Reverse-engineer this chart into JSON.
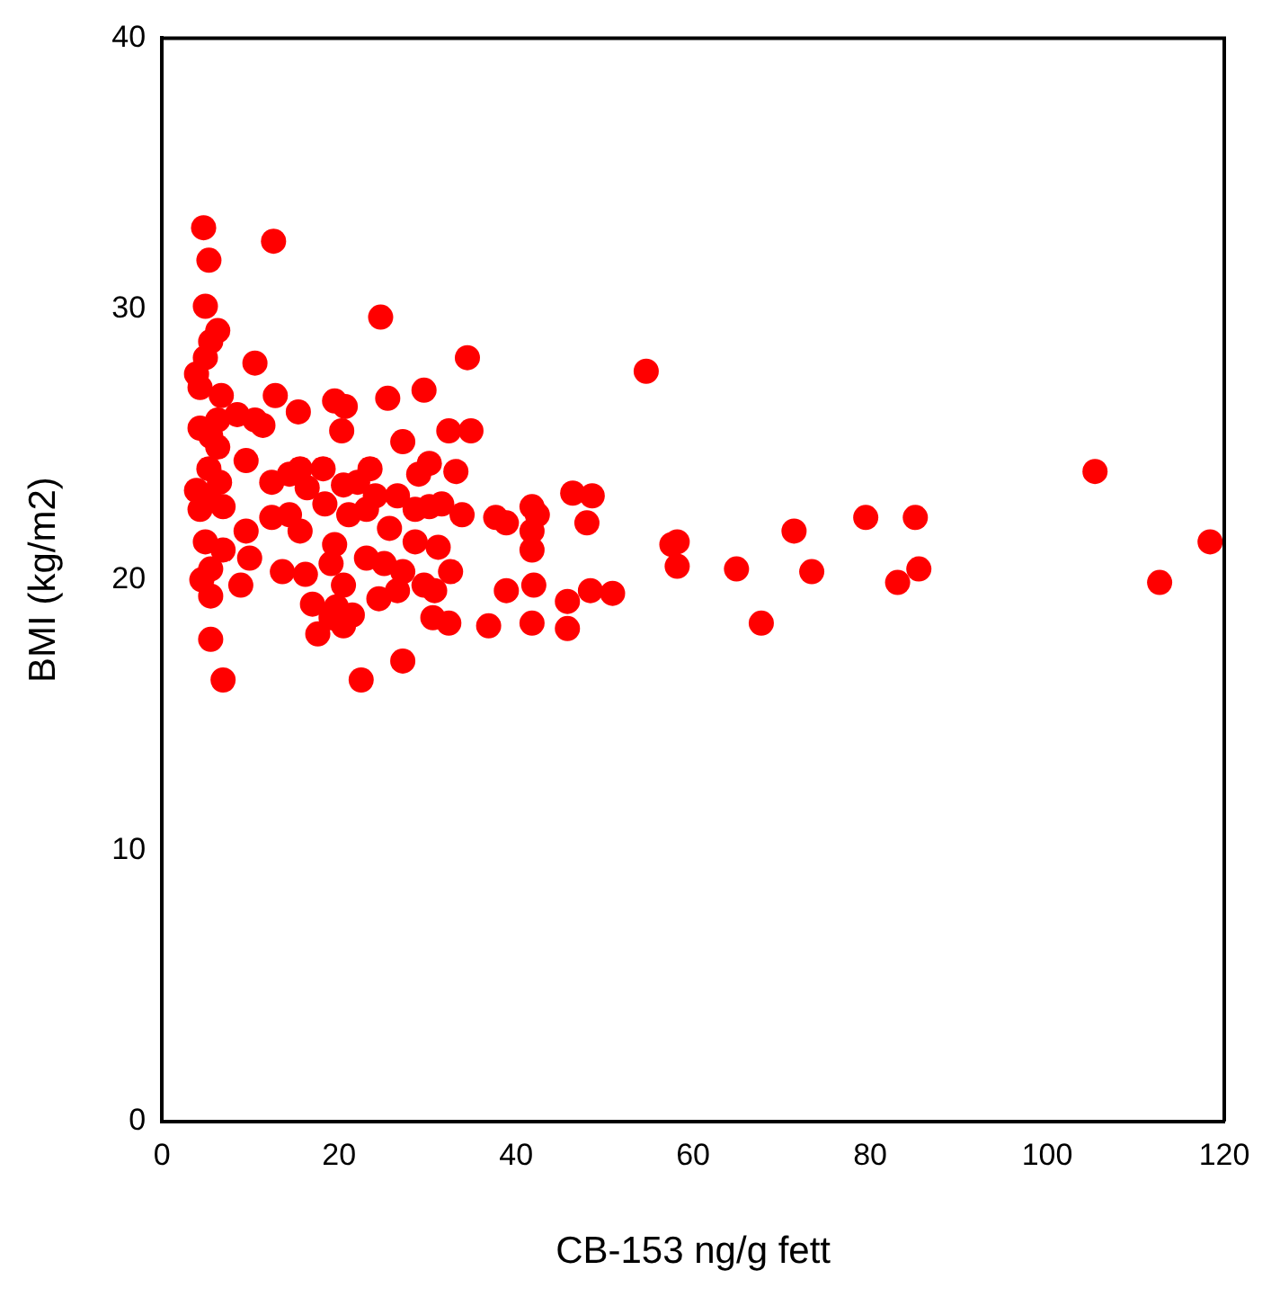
{
  "chart_data": {
    "type": "scatter",
    "xlabel": "CB-153 ng/g fett",
    "ylabel": "BMI (kg/m2)",
    "xlim": [
      0,
      120
    ],
    "xticks": [
      0,
      20,
      40,
      60,
      80,
      100,
      120
    ],
    "ylim": [
      0,
      40
    ],
    "yticks": [
      0,
      10,
      20,
      30,
      40
    ],
    "marker": "circle",
    "series": [
      {
        "color": "#ff0000",
        "x": [
          4.7,
          5.3,
          12.6,
          4.9,
          24.7,
          6.3,
          5.5,
          4.9,
          10.5,
          3.9,
          4.3,
          6.7,
          12.8,
          15.4,
          19.5,
          20.7,
          25.5,
          20.3,
          4.3,
          6.3,
          8.5,
          10.5,
          11.4,
          5.5,
          6.3,
          27.2,
          9.5,
          5.3,
          18.2,
          23.5,
          12.4,
          14.4,
          15.6,
          6.5,
          3.9,
          20.5,
          22.1,
          26.6,
          5.1,
          6.9,
          16.4,
          18.4,
          24.1,
          28.6,
          4.3,
          12.4,
          14.4,
          15.6,
          21.1,
          23.1,
          25.7,
          9.5,
          4.9,
          6.9,
          9.9,
          19.5,
          19.1,
          23.1,
          25.1,
          27.2,
          5.5,
          4.5,
          13.6,
          16.2,
          8.9,
          20.5,
          5.5,
          24.5,
          26.6,
          17.0,
          19.7,
          21.5,
          19.1,
          20.5,
          17.6,
          5.5,
          27.2,
          6.9,
          22.5,
          34.5,
          29.6,
          54.7,
          32.4,
          34.9,
          30.2,
          29.0,
          33.2,
          30.2,
          31.6,
          33.9,
          37.7,
          38.9,
          41.8,
          42.4,
          46.4,
          48.6,
          48.0,
          41.8,
          41.8,
          28.6,
          31.2,
          32.6,
          29.6,
          30.8,
          38.9,
          42.0,
          45.8,
          48.4,
          50.9,
          30.6,
          32.4,
          36.9,
          41.8,
          45.8,
          57.6,
          58.2,
          58.2,
          105.4,
          118.4,
          112.7,
          64.9,
          67.7,
          71.4,
          73.4,
          79.5,
          85.1,
          83.1,
          85.5
        ],
        "values": [
          33.0,
          31.8,
          32.5,
          30.1,
          29.7,
          29.2,
          28.8,
          28.2,
          28.0,
          27.6,
          27.1,
          26.8,
          26.8,
          26.2,
          26.6,
          26.4,
          26.7,
          25.5,
          25.6,
          25.9,
          26.1,
          25.9,
          25.7,
          25.3,
          24.9,
          25.1,
          24.4,
          24.1,
          24.1,
          24.1,
          23.6,
          23.9,
          24.1,
          23.6,
          23.3,
          23.5,
          23.6,
          23.1,
          23.1,
          22.7,
          23.4,
          22.8,
          23.1,
          22.6,
          22.6,
          22.3,
          22.4,
          21.8,
          22.4,
          22.6,
          21.9,
          21.8,
          21.4,
          21.1,
          20.8,
          21.3,
          20.6,
          20.8,
          20.6,
          20.3,
          20.4,
          20.0,
          20.3,
          20.2,
          19.8,
          19.8,
          19.4,
          19.3,
          19.6,
          19.1,
          19.0,
          18.7,
          18.6,
          18.3,
          18.0,
          17.8,
          17.0,
          16.3,
          16.3,
          28.2,
          27.0,
          27.7,
          25.5,
          25.5,
          24.3,
          23.9,
          24.0,
          22.7,
          22.8,
          22.4,
          22.3,
          22.1,
          22.7,
          22.4,
          23.2,
          23.1,
          22.1,
          21.8,
          21.1,
          21.4,
          21.2,
          20.3,
          19.8,
          19.6,
          19.6,
          19.8,
          19.2,
          19.6,
          19.5,
          18.6,
          18.4,
          18.3,
          18.4,
          18.2,
          21.3,
          21.4,
          20.5,
          24.0,
          21.4,
          19.9,
          20.4,
          18.4,
          21.8,
          20.3,
          22.3,
          22.3,
          19.9,
          20.4
        ]
      }
    ]
  }
}
